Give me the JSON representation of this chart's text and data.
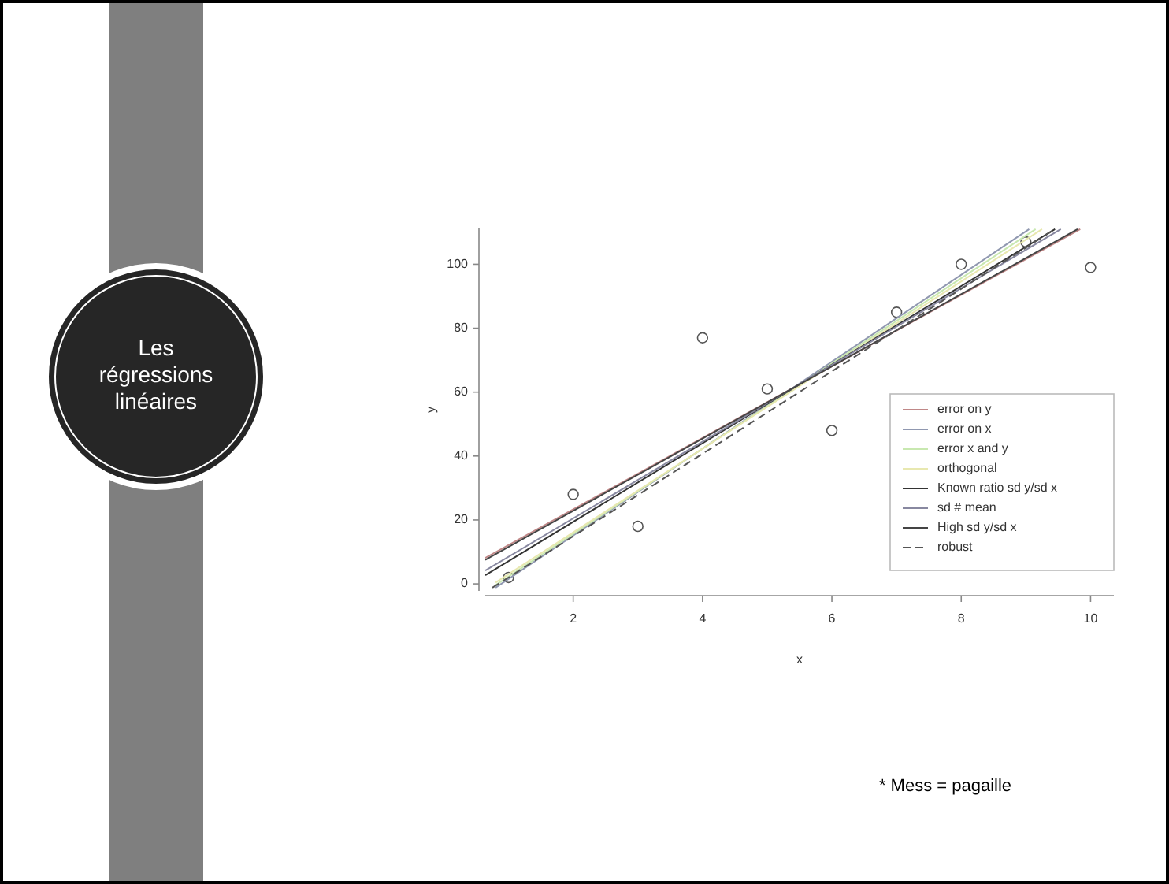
{
  "chart_data": {
    "type": "line",
    "title": "Les régressions linéaires",
    "xlabel": "x",
    "ylabel": "y",
    "xlim": [
      0.64,
      10.36
    ],
    "ylim": [
      -2.2,
      111.2
    ],
    "xticks": [
      2,
      4,
      6,
      8,
      10
    ],
    "yticks": [
      0,
      20,
      40,
      60,
      80,
      100
    ],
    "grid": false,
    "legend": "bottom right",
    "series": [
      {
        "type": "scatter",
        "marker": "circle",
        "color": "#555555",
        "x": [
          1,
          2,
          3,
          4,
          5,
          6,
          7,
          8,
          9,
          10
        ],
        "values": [
          2,
          28,
          18,
          77,
          61,
          48,
          85,
          100,
          107,
          99
        ]
      },
      {
        "name": "error on y",
        "color": "#c08888",
        "line_style": "solid",
        "x": [
          0.64,
          9.84
        ],
        "values": [
          8.1,
          111
        ]
      },
      {
        "name": "error on x",
        "color": "#9098b0",
        "line_style": "solid",
        "x": [
          0.8,
          9.05
        ],
        "values": [
          -1.2,
          111
        ]
      },
      {
        "name": "error x and y",
        "color": "#c8e8b0",
        "line_style": "solid",
        "x": [
          0.8,
          9.15
        ],
        "values": [
          -0.4,
          111
        ]
      },
      {
        "name": "orthogonal",
        "color": "#e8e8b0",
        "line_style": "solid",
        "x": [
          0.8,
          9.25
        ],
        "values": [
          0.4,
          111
        ]
      },
      {
        "name": "Known ratio sd y/sd x",
        "color": "#333333",
        "line_style": "solid",
        "x": [
          0.64,
          9.45
        ],
        "values": [
          2.7,
          111
        ]
      },
      {
        "name": "sd # mean",
        "color": "#8888a0",
        "line_style": "solid",
        "x": [
          0.64,
          9.54
        ],
        "values": [
          4.2,
          111
        ]
      },
      {
        "name": "High sd y/sd x",
        "color": "#444444",
        "line_style": "solid",
        "x": [
          0.64,
          9.8
        ],
        "values": [
          7.5,
          111
        ]
      },
      {
        "name": "robust",
        "color": "#555555",
        "line_style": "dashed",
        "x": [
          0.75,
          9.45
        ],
        "values": [
          -1.2,
          111
        ]
      }
    ],
    "annotations": [
      "* Mess = pagaille"
    ]
  }
}
